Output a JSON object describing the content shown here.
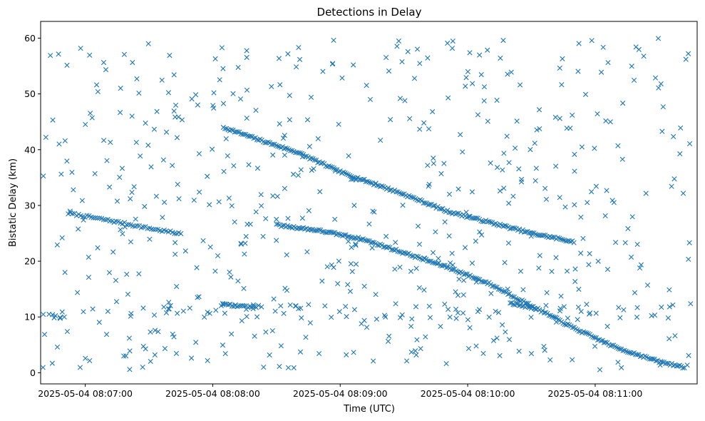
{
  "chart_data": {
    "type": "scatter",
    "title": "Detections in Delay",
    "xlabel": "Time (UTC)",
    "ylabel": "Bistatic Delay (km)",
    "marker": "x",
    "color": "#1f77b4",
    "grid": false,
    "legend": "none",
    "x_axis": {
      "start": "2025-05-04 08:06:39",
      "end": "2025-05-04 08:11:48",
      "ticks": [
        "2025-05-04 08:07:00",
        "2025-05-04 08:08:00",
        "2025-05-04 08:09:00",
        "2025-05-04 08:10:00",
        "2025-05-04 08:11:00"
      ]
    },
    "y_axis": {
      "ylim": [
        -2,
        63
      ],
      "ticks": [
        0,
        10,
        20,
        30,
        40,
        50,
        60
      ]
    },
    "tracks": [
      {
        "description_free": true,
        "points": [
          [
            "2025-05-04 08:06:52",
            28.6
          ],
          [
            "2025-05-04 08:07:10",
            27.4
          ],
          [
            "2025-05-04 08:07:30",
            25.9
          ],
          [
            "2025-05-04 08:07:45",
            24.9
          ]
        ],
        "density": 55
      },
      {
        "points": [
          [
            "2025-05-04 08:08:05",
            44.0
          ],
          [
            "2025-05-04 08:08:20",
            42.0
          ],
          [
            "2025-05-04 08:08:40",
            39.5
          ],
          [
            "2025-05-04 08:09:00",
            36.0
          ],
          [
            "2025-05-04 08:09:30",
            32.0
          ],
          [
            "2025-05-04 08:09:50",
            29.0
          ],
          [
            "2025-05-04 08:10:10",
            27.0
          ],
          [
            "2025-05-04 08:10:30",
            25.0
          ],
          [
            "2025-05-04 08:10:50",
            23.5
          ]
        ],
        "density": 220
      },
      {
        "points": [
          [
            "2025-05-04 08:08:30",
            26.5
          ],
          [
            "2025-05-04 08:08:50",
            25.5
          ],
          [
            "2025-05-04 08:09:10",
            24.0
          ],
          [
            "2025-05-04 08:09:30",
            21.5
          ],
          [
            "2025-05-04 08:09:50",
            19.0
          ],
          [
            "2025-05-04 08:10:10",
            16.0
          ],
          [
            "2025-05-04 08:10:30",
            12.0
          ],
          [
            "2025-05-04 08:10:50",
            8.0
          ],
          [
            "2025-05-04 08:11:10",
            4.5
          ],
          [
            "2025-05-04 08:11:30",
            2.0
          ],
          [
            "2025-05-04 08:11:42",
            1.0
          ]
        ],
        "density": 260
      },
      {
        "points": [
          [
            "2025-05-04 08:08:04",
            12.2
          ],
          [
            "2025-05-04 08:08:20",
            11.8
          ]
        ],
        "density": 20
      },
      {
        "points": [
          [
            "2025-05-04 08:10:20",
            12.5
          ],
          [
            "2025-05-04 08:10:32",
            11.5
          ]
        ],
        "density": 18
      }
    ],
    "clutter": {
      "count": 560,
      "x_start": "2025-05-04 08:06:40",
      "x_end": "2025-05-04 08:11:45",
      "y_range": [
        0.5,
        60
      ],
      "seed": 7
    },
    "band_12km": {
      "count": 70,
      "y_range": [
        9.5,
        12.5
      ]
    }
  }
}
